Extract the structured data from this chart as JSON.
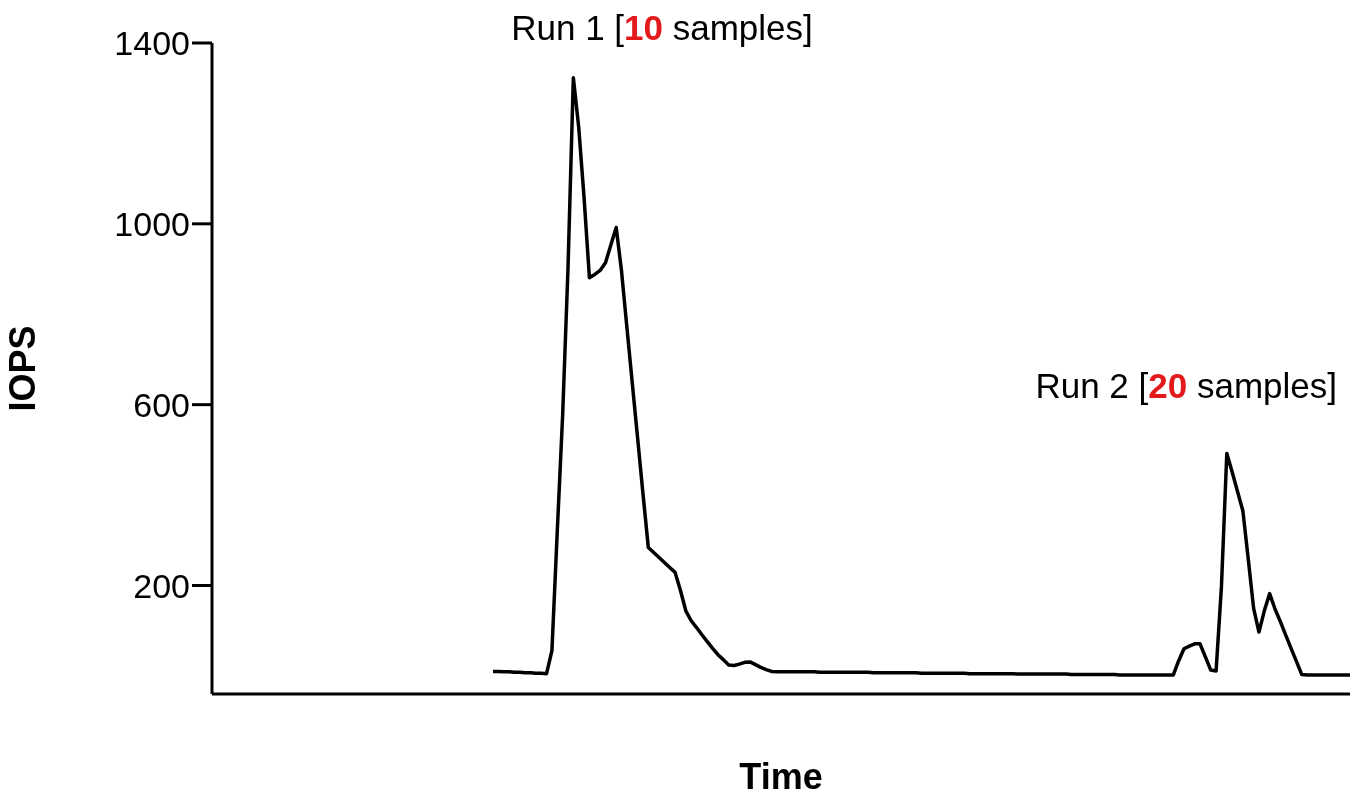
{
  "chart_data": {
    "type": "line",
    "xlabel": "Time",
    "ylabel": "IOPS",
    "annotations": [
      "Run 1 [10 samples]",
      "Run 2 [20 samples]"
    ],
    "categories": [
      null,
      null,
      null,
      null,
      null,
      null,
      null,
      null,
      null,
      null,
      null,
      null,
      null,
      null,
      null,
      null,
      null,
      null,
      null,
      null,
      null,
      null,
      null,
      null,
      null,
      null,
      null,
      null,
      null,
      null,
      null,
      null,
      null,
      null,
      null,
      null,
      null,
      null,
      null,
      null,
      null,
      null,
      null,
      null,
      null,
      null,
      null,
      null,
      null,
      null,
      null,
      null,
      null,
      null,
      null,
      null,
      null,
      null,
      null,
      null,
      null,
      null,
      null,
      null,
      null,
      null,
      null,
      null,
      null,
      null,
      null,
      null,
      null,
      null,
      null,
      null,
      null,
      null,
      null,
      null,
      null,
      null,
      null,
      null,
      null,
      null,
      null,
      null,
      null,
      null,
      null,
      null,
      null,
      null,
      null,
      null,
      null,
      null,
      null,
      null,
      null,
      null,
      null,
      null,
      null,
      null,
      null,
      null,
      null,
      null,
      null,
      null,
      null,
      null,
      null,
      null,
      null,
      null,
      null,
      null,
      null,
      null,
      null,
      null,
      null,
      null,
      null,
      null,
      null,
      null,
      null,
      null,
      null,
      null,
      null,
      null,
      null,
      null,
      null,
      null,
      null,
      null,
      null,
      null,
      null,
      null,
      null,
      null,
      null,
      null,
      null,
      null,
      null,
      null,
      null,
      null,
      null,
      null,
      null,
      null,
      null
    ],
    "series": [
      {
        "color": "#000000",
        "values": [
          10,
          10,
          9,
          9,
          8,
          8,
          7,
          7,
          6,
          6,
          5,
          56,
          320,
          576,
          901,
          1323,
          1214,
          1058,
          881,
          888,
          897,
          914,
          953,
          992,
          895,
          771,
          648,
          526,
          403,
          284,
          273,
          262,
          251,
          240,
          229,
          189,
          144,
          122,
          107,
          91,
          76,
          61,
          47,
          36,
          24,
          23,
          26,
          30,
          31,
          25,
          19,
          14,
          10,
          9,
          9,
          9,
          9,
          9,
          9,
          9,
          9,
          8,
          8,
          8,
          8,
          8,
          8,
          8,
          8,
          8,
          8,
          7,
          7,
          7,
          7,
          7,
          7,
          7,
          7,
          7,
          6,
          6,
          6,
          6,
          6,
          6,
          6,
          6,
          6,
          5,
          5,
          5,
          5,
          5,
          5,
          5,
          5,
          5,
          4,
          4,
          4,
          4,
          4,
          4,
          4,
          4,
          4,
          4,
          3,
          3,
          3,
          3,
          3,
          3,
          3,
          3,
          3,
          2,
          2,
          2,
          2,
          2,
          2,
          2,
          2,
          2,
          2,
          2,
          33,
          60,
          66,
          71,
          71,
          42,
          13,
          11,
          198,
          492,
          451,
          408,
          365,
          259,
          150,
          97,
          144,
          182,
          148,
          120,
          90,
          61,
          32,
          3,
          2,
          2,
          2,
          2,
          2,
          2,
          2,
          2,
          2
        ]
      }
    ],
    "ylim": [
      -40,
      1400
    ],
    "yticks": [
      200,
      600,
      1000,
      1400
    ],
    "grid": false,
    "legend": false,
    "marker": "none",
    "line_style": "solid",
    "tick_labels": "y"
  }
}
